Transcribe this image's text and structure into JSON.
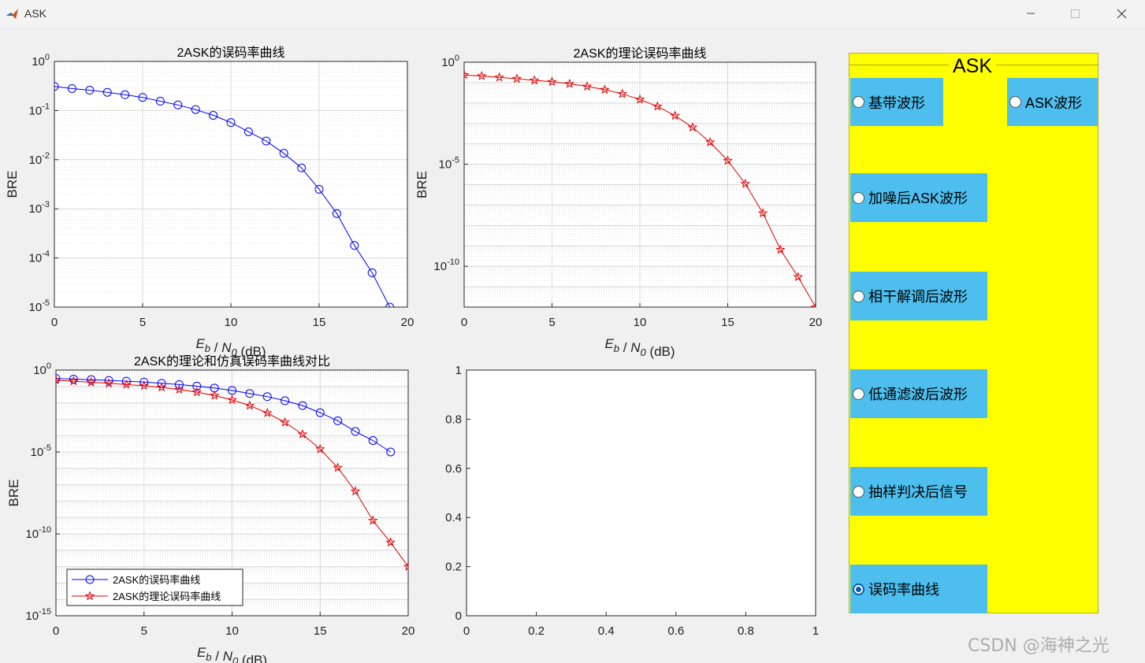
{
  "window": {
    "title": "ASK"
  },
  "panel": {
    "title": "ASK",
    "options": [
      {
        "label": "基带波形",
        "checked": false
      },
      {
        "label": "ASK波形",
        "checked": false
      },
      {
        "label": "加噪后ASK波形",
        "checked": false
      },
      {
        "label": "相干解调后波形",
        "checked": false
      },
      {
        "label": "低通滤波后波形",
        "checked": false
      },
      {
        "label": "抽样判决后信号",
        "checked": false
      },
      {
        "label": "误码率曲线",
        "checked": true
      }
    ]
  },
  "watermark": "CSDN @海神之光",
  "colors": {
    "panel_bg": "#ffff00",
    "button_bg": "#4dbeee",
    "sim_series": "#0000ff",
    "theory_series": "#e00000",
    "radio_selected": "#0b5cad"
  },
  "chart_data": [
    {
      "type": "line",
      "title": "2ASK的误码率曲线",
      "xlabel": "E_b / N_0 (dB)",
      "ylabel": "BRE",
      "xlim": [
        0,
        20
      ],
      "ylim": [
        1e-05,
        1
      ],
      "yscale": "log",
      "grid": "major+minor",
      "xticks": [
        "0",
        "5",
        "10",
        "15",
        "20"
      ],
      "yticks": [
        "10^0",
        "10^-1",
        "10^-2",
        "10^-3",
        "10^-4",
        "10^-5"
      ],
      "series": [
        {
          "marker": "circle",
          "color": "#0000ff",
          "x": [
            0,
            1,
            2,
            3,
            4,
            5,
            6,
            7,
            8,
            9,
            10,
            11,
            12,
            13,
            14,
            15,
            16,
            17,
            18,
            19
          ],
          "y": [
            0.31,
            0.28,
            0.26,
            0.235,
            0.21,
            0.185,
            0.155,
            0.13,
            0.105,
            0.08,
            0.057,
            0.037,
            0.024,
            0.0135,
            0.0068,
            0.0025,
            0.0008,
            0.00018,
            5e-05,
            1e-05
          ]
        }
      ]
    },
    {
      "type": "line",
      "title": "2ASK的理论误码率曲线",
      "xlabel": "E_b / N_0 (dB)",
      "ylabel": "BRE",
      "xlim": [
        0,
        20
      ],
      "ylim": [
        1e-12,
        1
      ],
      "yscale": "log",
      "grid": "major+minor",
      "xticks": [
        "0",
        "5",
        "10",
        "15",
        "20"
      ],
      "yticks": [
        "10^0",
        "10^-5",
        "10^-10"
      ],
      "series": [
        {
          "marker": "star",
          "color": "#e00000",
          "x": [
            0,
            1,
            2,
            3,
            4,
            5,
            6,
            7,
            8,
            9,
            10,
            11,
            12,
            13,
            14,
            15,
            16,
            17,
            18,
            19,
            20
          ],
          "y": [
            0.24,
            0.21,
            0.18,
            0.155,
            0.13,
            0.11,
            0.088,
            0.065,
            0.045,
            0.028,
            0.015,
            0.0068,
            0.0024,
            0.00064,
            0.00012,
            1.5e-05,
            1.1e-06,
            4e-08,
            6.5e-10,
            3e-11,
            1e-12
          ]
        }
      ]
    },
    {
      "type": "line",
      "title": "2ASK的理论和仿真误码率曲线对比",
      "xlabel": "E_b / N_0 (dB)",
      "ylabel": "BRE",
      "xlim": [
        0,
        20
      ],
      "ylim": [
        1e-15,
        1
      ],
      "yscale": "log",
      "grid": "major+minor",
      "legend": "bottom-left",
      "xticks": [
        "0",
        "5",
        "10",
        "15",
        "20"
      ],
      "yticks": [
        "10^0",
        "10^-5",
        "10^-10",
        "10^-15"
      ],
      "series": [
        {
          "name": "2ASK的误码率曲线",
          "marker": "circle",
          "color": "#0000ff",
          "x": [
            0,
            1,
            2,
            3,
            4,
            5,
            6,
            7,
            8,
            9,
            10,
            11,
            12,
            13,
            14,
            15,
            16,
            17,
            18,
            19
          ],
          "y": [
            0.31,
            0.28,
            0.26,
            0.235,
            0.21,
            0.185,
            0.155,
            0.13,
            0.105,
            0.08,
            0.057,
            0.037,
            0.024,
            0.0135,
            0.0068,
            0.0025,
            0.0008,
            0.00018,
            5e-05,
            1e-05
          ]
        },
        {
          "name": "2ASK的理论误码率曲线",
          "marker": "star",
          "color": "#e00000",
          "x": [
            0,
            1,
            2,
            3,
            4,
            5,
            6,
            7,
            8,
            9,
            10,
            11,
            12,
            13,
            14,
            15,
            16,
            17,
            18,
            19,
            20
          ],
          "y": [
            0.24,
            0.21,
            0.18,
            0.155,
            0.13,
            0.11,
            0.088,
            0.065,
            0.045,
            0.028,
            0.015,
            0.0068,
            0.0024,
            0.00064,
            0.00012,
            1.5e-05,
            1.1e-06,
            4e-08,
            6.5e-10,
            3e-11,
            1e-12
          ]
        }
      ]
    },
    {
      "type": "line",
      "title": "",
      "xlim": [
        0,
        1
      ],
      "ylim": [
        0,
        1
      ],
      "grid": "off",
      "xticks": [
        "0",
        "0.2",
        "0.4",
        "0.6",
        "0.8",
        "1"
      ],
      "yticks": [
        "0",
        "0.2",
        "0.4",
        "0.6",
        "0.8",
        "1"
      ],
      "series": []
    }
  ]
}
